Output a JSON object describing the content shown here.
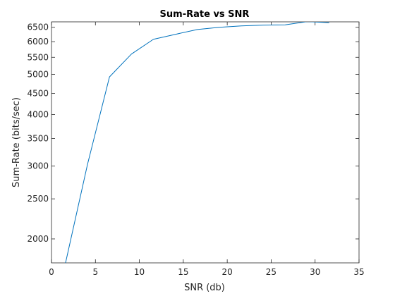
{
  "chart_data": {
    "type": "line",
    "title": "Sum-Rate vs SNR",
    "xlabel": "SNR (db)",
    "ylabel": "Sum-Rate (bits/sec)",
    "xscale": "linear",
    "yscale": "log",
    "xlim": [
      0,
      35
    ],
    "ylim": [
      1750,
      6700
    ],
    "xticks": [
      0,
      5,
      10,
      15,
      20,
      25,
      30,
      35
    ],
    "xtick_labels": [
      "0",
      "5",
      "10",
      "15",
      "20",
      "25",
      "30",
      "35"
    ],
    "yticks": [
      2000,
      2500,
      3000,
      3500,
      4000,
      4500,
      5000,
      5500,
      6000,
      6500
    ],
    "ytick_labels": [
      "2000",
      "2500",
      "3000",
      "3500",
      "4000",
      "4500",
      "5000",
      "5500",
      "6000",
      "6500"
    ],
    "grid": false,
    "legend": false,
    "series": [
      {
        "color": "#0072bd",
        "x": [
          1.6,
          4.1,
          6.6,
          9.1,
          11.6,
          14.1,
          16.6,
          19.1,
          21.6,
          24.1,
          26.6,
          29.1,
          31.6
        ],
        "y": [
          1750,
          3030,
          4930,
          5600,
          6080,
          6250,
          6420,
          6500,
          6550,
          6580,
          6590,
          6710,
          6670
        ]
      }
    ]
  }
}
